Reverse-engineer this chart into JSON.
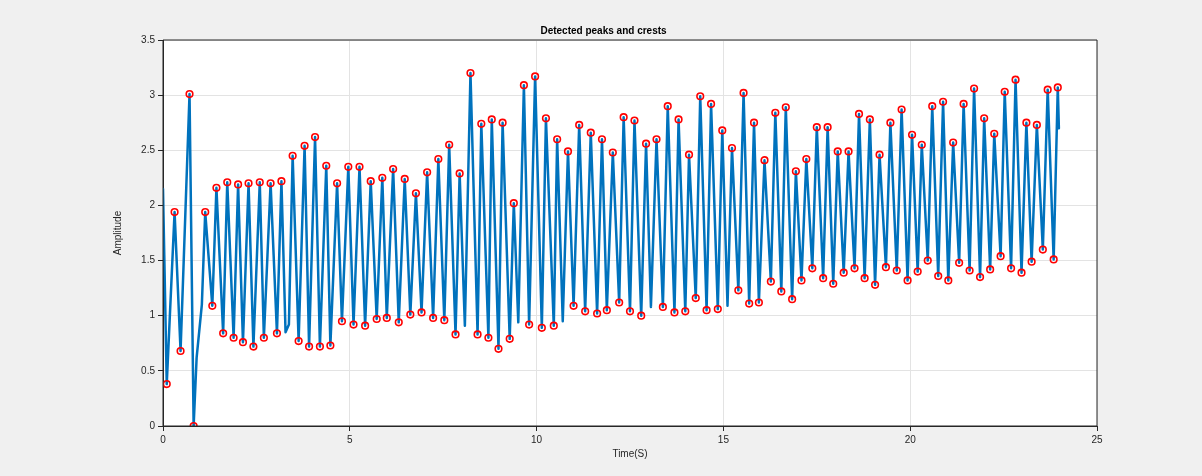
{
  "chart_data": {
    "type": "line",
    "title": "Detected peaks and crests",
    "xlabel": "Time(S)",
    "ylabel": "Amplitude",
    "xlim": [
      0,
      25
    ],
    "xticks": [
      0,
      5,
      10,
      15,
      20,
      25
    ],
    "ylim": [
      0,
      3.5
    ],
    "yticks": [
      0,
      0.5,
      1,
      1.5,
      2,
      2.5,
      3,
      3.5
    ],
    "grid": true,
    "series": [
      {
        "color": "#0072bd",
        "marker": "none",
        "x": [
          0,
          0.1,
          0.31,
          0.47,
          0.71,
          0.82,
          0.9,
          1.04,
          1.13,
          1.32,
          1.43,
          1.61,
          1.72,
          1.89,
          2.01,
          2.14,
          2.29,
          2.42,
          2.59,
          2.7,
          2.88,
          3.05,
          3.17,
          3.28,
          3.37,
          3.47,
          3.63,
          3.79,
          3.91,
          4.07,
          4.2,
          4.37,
          4.48,
          4.66,
          4.79,
          4.96,
          5.1,
          5.26,
          5.41,
          5.56,
          5.72,
          5.87,
          5.99,
          6.16,
          6.31,
          6.47,
          6.62,
          6.77,
          6.92,
          7.07,
          7.23,
          7.37,
          7.53,
          7.66,
          7.83,
          7.94,
          8.08,
          8.23,
          8.42,
          8.52,
          8.71,
          8.8,
          8.98,
          9.09,
          9.28,
          9.39,
          9.51,
          9.66,
          9.8,
          9.96,
          10.14,
          10.25,
          10.46,
          10.55,
          10.7,
          10.84,
          10.99,
          11.14,
          11.3,
          11.45,
          11.62,
          11.75,
          11.88,
          12.04,
          12.21,
          12.33,
          12.5,
          12.62,
          12.8,
          12.93,
          13.06,
          13.21,
          13.38,
          13.51,
          13.69,
          13.8,
          13.98,
          14.08,
          14.26,
          14.38,
          14.55,
          14.67,
          14.85,
          14.97,
          15.11,
          15.23,
          15.4,
          15.54,
          15.69,
          15.82,
          15.95,
          16.1,
          16.27,
          16.39,
          16.55,
          16.67,
          16.84,
          16.94,
          17.09,
          17.22,
          17.38,
          17.5,
          17.67,
          17.79,
          17.94,
          18.06,
          18.22,
          18.35,
          18.51,
          18.63,
          18.78,
          18.92,
          19.06,
          19.18,
          19.35,
          19.47,
          19.64,
          19.77,
          19.93,
          20.05,
          20.2,
          20.31,
          20.47,
          20.59,
          20.75,
          20.88,
          21.02,
          21.15,
          21.31,
          21.43,
          21.59,
          21.71,
          21.87,
          21.98,
          22.14,
          22.25,
          22.42,
          22.53,
          22.7,
          22.82,
          22.98,
          23.11,
          23.25,
          23.39,
          23.55,
          23.68,
          23.84,
          23.95,
          23.98
        ],
        "values": [
          2.15,
          0.38,
          1.94,
          0.68,
          3.01,
          0,
          0.62,
          1.1,
          1.94,
          1.09,
          2.16,
          0.84,
          2.21,
          0.8,
          2.19,
          0.76,
          2.2,
          0.72,
          2.21,
          0.8,
          2.2,
          0.84,
          2.22,
          0.85,
          0.92,
          2.45,
          0.77,
          2.54,
          0.72,
          2.62,
          0.72,
          2.36,
          0.73,
          2.2,
          0.95,
          2.35,
          0.92,
          2.35,
          0.91,
          2.22,
          0.97,
          2.25,
          0.98,
          2.33,
          0.94,
          2.24,
          1.01,
          2.11,
          1.03,
          2.3,
          0.98,
          2.42,
          0.96,
          2.55,
          0.83,
          2.29,
          0.91,
          3.2,
          0.83,
          2.74,
          0.8,
          2.78,
          0.7,
          2.75,
          0.79,
          2.02,
          0.94,
          3.09,
          0.92,
          3.17,
          0.89,
          2.79,
          0.91,
          2.6,
          0.95,
          2.49,
          1.09,
          2.73,
          1.04,
          2.66,
          1.02,
          2.6,
          1.05,
          2.48,
          1.12,
          2.8,
          1.04,
          2.77,
          1.0,
          2.56,
          1.08,
          2.6,
          1.08,
          2.9,
          1.03,
          2.78,
          1.04,
          2.46,
          1.16,
          2.99,
          1.05,
          2.92,
          1.06,
          2.68,
          1.09,
          2.52,
          1.23,
          3.02,
          1.11,
          2.75,
          1.12,
          2.41,
          1.31,
          2.84,
          1.22,
          2.89,
          1.15,
          2.31,
          1.32,
          2.42,
          1.43,
          2.71,
          1.34,
          2.71,
          1.29,
          2.49,
          1.39,
          2.49,
          1.43,
          2.83,
          1.34,
          2.78,
          1.28,
          2.46,
          1.44,
          2.75,
          1.41,
          2.87,
          1.32,
          2.64,
          1.4,
          2.55,
          1.5,
          2.9,
          1.36,
          2.94,
          1.32,
          2.57,
          1.48,
          2.92,
          1.41,
          3.06,
          1.35,
          2.79,
          1.42,
          2.65,
          1.54,
          3.03,
          1.43,
          3.14,
          1.39,
          2.75,
          1.49,
          2.73,
          1.6,
          3.05,
          1.51,
          3.07,
          2.7
        ]
      },
      {
        "type": "scatter",
        "color": "#ff0000",
        "marker": "circle",
        "x": [
          0.1,
          0.31,
          0.47,
          0.71,
          0.82,
          1.13,
          1.32,
          1.43,
          1.61,
          1.72,
          1.89,
          2.01,
          2.14,
          2.29,
          2.42,
          2.59,
          2.7,
          2.88,
          3.05,
          3.17,
          3.47,
          3.63,
          3.79,
          3.91,
          4.07,
          4.2,
          4.37,
          4.48,
          4.66,
          4.79,
          4.96,
          5.1,
          5.26,
          5.41,
          5.56,
          5.72,
          5.87,
          5.99,
          6.16,
          6.31,
          6.47,
          6.62,
          6.77,
          6.92,
          7.07,
          7.23,
          7.37,
          7.53,
          7.66,
          7.83,
          7.94,
          8.23,
          8.42,
          8.52,
          8.71,
          8.8,
          8.98,
          9.09,
          9.28,
          9.39,
          9.66,
          9.8,
          9.96,
          10.14,
          10.25,
          10.46,
          10.55,
          10.84,
          10.99,
          11.14,
          11.3,
          11.45,
          11.62,
          11.75,
          11.88,
          12.04,
          12.21,
          12.33,
          12.5,
          12.62,
          12.8,
          12.93,
          13.21,
          13.38,
          13.51,
          13.69,
          13.8,
          13.98,
          14.08,
          14.26,
          14.38,
          14.55,
          14.67,
          14.85,
          14.97,
          15.23,
          15.4,
          15.54,
          15.69,
          15.82,
          15.95,
          16.1,
          16.27,
          16.39,
          16.55,
          16.67,
          16.84,
          16.94,
          17.09,
          17.22,
          17.38,
          17.5,
          17.67,
          17.79,
          17.94,
          18.06,
          18.22,
          18.35,
          18.51,
          18.63,
          18.78,
          18.92,
          19.06,
          19.18,
          19.35,
          19.47,
          19.64,
          19.77,
          19.93,
          20.05,
          20.2,
          20.31,
          20.47,
          20.59,
          20.75,
          20.88,
          21.02,
          21.15,
          21.31,
          21.43,
          21.59,
          21.71,
          21.87,
          21.98,
          22.14,
          22.25,
          22.42,
          22.53,
          22.7,
          22.82,
          22.98,
          23.11,
          23.25,
          23.39,
          23.55,
          23.68,
          23.84,
          23.95
        ],
        "values": [
          0.38,
          1.94,
          0.68,
          3.01,
          0,
          1.94,
          1.09,
          2.16,
          0.84,
          2.21,
          0.8,
          2.19,
          0.76,
          2.2,
          0.72,
          2.21,
          0.8,
          2.2,
          0.84,
          2.22,
          2.45,
          0.77,
          2.54,
          0.72,
          2.62,
          0.72,
          2.36,
          0.73,
          2.2,
          0.95,
          2.35,
          0.92,
          2.35,
          0.91,
          2.22,
          0.97,
          2.25,
          0.98,
          2.33,
          0.94,
          2.24,
          1.01,
          2.11,
          1.03,
          2.3,
          0.98,
          2.42,
          0.96,
          2.55,
          0.83,
          2.29,
          3.2,
          0.83,
          2.74,
          0.8,
          2.78,
          0.7,
          2.75,
          0.79,
          2.02,
          3.09,
          0.92,
          3.17,
          0.89,
          2.79,
          0.91,
          2.6,
          2.49,
          1.09,
          2.73,
          1.04,
          2.66,
          1.02,
          2.6,
          1.05,
          2.48,
          1.12,
          2.8,
          1.04,
          2.77,
          1.0,
          2.56,
          2.6,
          1.08,
          2.9,
          1.03,
          2.78,
          1.04,
          2.46,
          1.16,
          2.99,
          1.05,
          2.92,
          1.06,
          2.68,
          2.52,
          1.23,
          3.02,
          1.11,
          2.75,
          1.12,
          2.41,
          1.31,
          2.84,
          1.22,
          2.89,
          1.15,
          2.31,
          1.32,
          2.42,
          1.43,
          2.71,
          1.34,
          2.71,
          1.29,
          2.49,
          1.39,
          2.49,
          1.43,
          2.83,
          1.34,
          2.78,
          1.28,
          2.46,
          1.44,
          2.75,
          1.41,
          2.87,
          1.32,
          2.64,
          1.4,
          2.55,
          1.5,
          2.9,
          1.36,
          2.94,
          1.32,
          2.57,
          1.48,
          2.92,
          1.41,
          3.06,
          1.35,
          2.79,
          1.42,
          2.65,
          1.54,
          3.03,
          1.43,
          3.14,
          1.39,
          2.75,
          1.49,
          2.73,
          1.6,
          3.05,
          1.51,
          3.07
        ]
      }
    ]
  }
}
